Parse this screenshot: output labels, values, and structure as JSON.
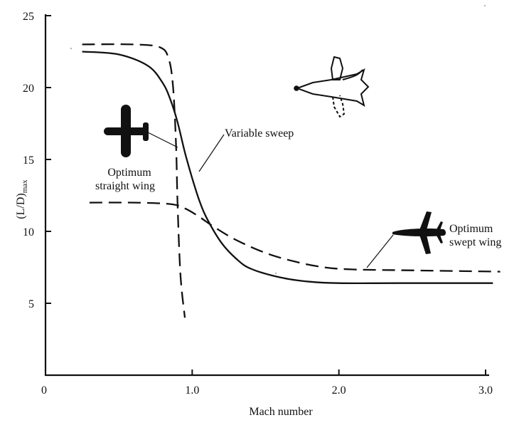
{
  "chart_data": {
    "type": "line",
    "title": "",
    "xlabel": "Mach number",
    "ylabel": "(L/D)max",
    "xlim": [
      0,
      3.0
    ],
    "ylim": [
      0,
      25
    ],
    "xticks": [
      "0",
      "1.0",
      "2.0",
      "3.0"
    ],
    "yticks": [
      "5",
      "10",
      "15",
      "20",
      "25"
    ],
    "grid": false,
    "series": [
      {
        "name": "Variable sweep",
        "style": "solid",
        "x": [
          0.25,
          0.5,
          0.7,
          0.8,
          0.85,
          0.9,
          0.95,
          1.0,
          1.05,
          1.1,
          1.2,
          1.3,
          1.4,
          1.6,
          1.8,
          2.0,
          2.4,
          3.05
        ],
        "y": [
          22.5,
          22.3,
          21.5,
          20.3,
          19.2,
          17.6,
          15.5,
          13.7,
          12.1,
          10.9,
          9.2,
          8.1,
          7.4,
          6.8,
          6.5,
          6.4,
          6.4,
          6.4
        ]
      },
      {
        "name": "Optimum straight wing",
        "style": "dashed",
        "x": [
          0.25,
          0.6,
          0.78,
          0.84,
          0.87,
          0.89,
          0.9,
          0.92,
          0.95
        ],
        "y": [
          23.0,
          23.0,
          22.8,
          22.0,
          20.0,
          16.0,
          12.0,
          7.0,
          4.0
        ]
      },
      {
        "name": "Optimum swept wing",
        "style": "dashed",
        "x": [
          0.3,
          0.6,
          0.85,
          0.95,
          1.05,
          1.15,
          1.3,
          1.5,
          1.7,
          1.9,
          2.1,
          2.4,
          3.1
        ],
        "y": [
          12.0,
          12.0,
          11.9,
          11.6,
          11.0,
          10.3,
          9.4,
          8.5,
          7.9,
          7.5,
          7.35,
          7.3,
          7.2
        ]
      }
    ],
    "annotations": {
      "variable_sweep": "Variable sweep",
      "straight_line1": "Optimum",
      "straight_line2": "straight wing",
      "swept_line1": "Optimum",
      "swept_line2": "swept wing"
    },
    "colors": {
      "ink": "#111111",
      "background": "#ffffff"
    }
  }
}
